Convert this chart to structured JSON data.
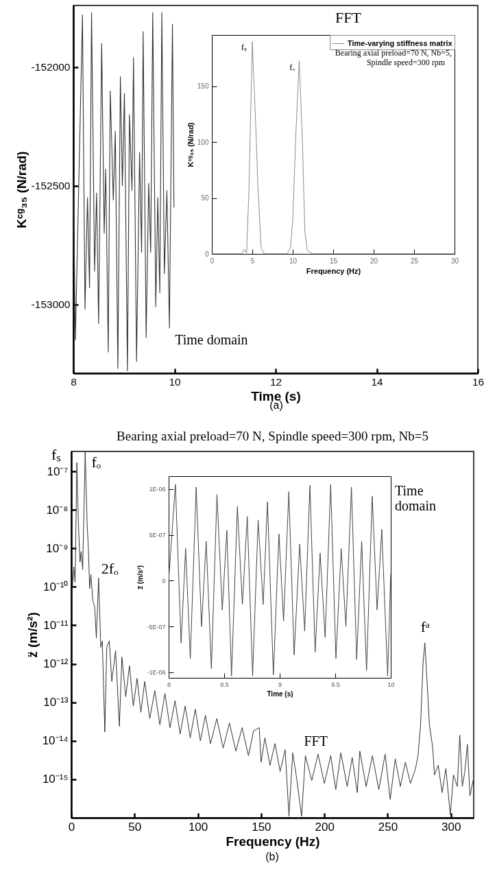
{
  "chart_data": [
    {
      "type": "line",
      "xlabel": "Time (s)",
      "ylabel": "Kᶜᵍ₃₅ (N/rad)",
      "xlim": [
        8,
        16
      ],
      "xticks": [
        8,
        10,
        12,
        14,
        16
      ],
      "ylim": [
        -153290,
        -151740
      ],
      "yticks": [
        -153000,
        -152500,
        -152000
      ],
      "series": [
        {
          "color": "#333333",
          "x": [
            8.0,
            8.04,
            8.18,
            8.23,
            8.28,
            8.32,
            8.36,
            8.42,
            8.46,
            8.5,
            8.56,
            8.61,
            8.64,
            8.69,
            8.73,
            8.79,
            8.83,
            8.88,
            8.93,
            8.97,
            9.01,
            9.07,
            9.11,
            9.16,
            9.19,
            9.25,
            9.31,
            9.35,
            9.38,
            9.44,
            9.49,
            9.53,
            9.57,
            9.63,
            9.67,
            9.71,
            9.75,
            9.8,
            9.85,
            9.9,
            9.96,
            9.99
          ],
          "values": [
            -152480,
            -153150,
            -151780,
            -153020,
            -152550,
            -152930,
            -151770,
            -152860,
            -152530,
            -153080,
            -151900,
            -152700,
            -152430,
            -153200,
            -152100,
            -152560,
            -152270,
            -153270,
            -152040,
            -152500,
            -152110,
            -153280,
            -152200,
            -152520,
            -151960,
            -153240,
            -152360,
            -152780,
            -151850,
            -153140,
            -152490,
            -152780,
            -151770,
            -153010,
            -152550,
            -152950,
            -151770,
            -152870,
            -152520,
            -153100,
            -151820,
            -152590
          ]
        }
      ],
      "annotations": [
        {
          "text": "Time domain",
          "x": 9.9,
          "y": -153100
        },
        "(a)"
      ]
    },
    {
      "type": "line",
      "xlabel": "Frequency (Hz)",
      "ylabel": "Kᶜᵍ₃₅ (N/rad)",
      "xlim": [
        0,
        30
      ],
      "xticks": [
        0,
        5,
        10,
        15,
        20,
        25,
        30
      ],
      "ylim": [
        0,
        196
      ],
      "yticks": [
        0,
        50,
        100,
        150
      ],
      "legend": "top right",
      "series": [
        {
          "name": "Time-varying stiffness matrix",
          "color": "#8c8c8c",
          "x": [
            0,
            3.7,
            4.0,
            4.3,
            4.6,
            5.0,
            5.4,
            5.7,
            6.1,
            6.5,
            9.3,
            9.7,
            10.0,
            10.4,
            10.8,
            11.2,
            11.5,
            11.8,
            12.5,
            30
          ],
          "values": [
            0,
            0,
            4,
            1,
            60,
            190,
            120,
            60,
            5,
            0,
            0,
            5,
            30,
            110,
            173,
            100,
            20,
            3,
            0,
            0
          ]
        }
      ],
      "annotations": [
        "FFT",
        {
          "text": "fₛ",
          "x": 5,
          "y": 190
        },
        {
          "text": "fₒ",
          "x": 10.8,
          "y": 173
        },
        "Bearing axial preload=70 N, Nb=5,",
        "Spindle speed=300 rpm"
      ]
    },
    {
      "type": "line",
      "title": "Bearing axial preload=70 N, Spindle speed=300 rpm, Nb=5",
      "xlabel": "Frequency (Hz)",
      "ylabel": "z̈ (m/s²)",
      "log": "y",
      "xlim": [
        0,
        318
      ],
      "xticks": [
        0,
        50,
        100,
        150,
        200,
        250,
        300
      ],
      "ylim": [
        1e-16,
        3.3e-07
      ],
      "yticks": [
        {
          "value": 1e-15,
          "label": "10⁻¹⁵"
        },
        {
          "value": 1e-14,
          "label": "10⁻¹⁴"
        },
        {
          "value": 1e-13,
          "label": "10⁻¹³"
        },
        {
          "value": 1e-12,
          "label": "10⁻¹²"
        },
        {
          "value": 1e-11,
          "label": "10⁻¹¹"
        },
        {
          "value": 1e-10,
          "label": "10⁻¹⁰"
        },
        {
          "value": 1e-09,
          "label": "10⁻⁹"
        },
        {
          "value": 1e-08,
          "label": "10⁻⁸"
        },
        {
          "value": 1e-07,
          "label": "10⁻⁷"
        }
      ],
      "series": [
        {
          "color": "#333333",
          "x": [
            0.5,
            2,
            3,
            4.4,
            5.6,
            6.9,
            7.8,
            9,
            11,
            12.5,
            13.5,
            14.5,
            15.5,
            17,
            18.5,
            19.8,
            21.6,
            23.3,
            24.5,
            26.5,
            28,
            30,
            32,
            35,
            38,
            40,
            43,
            46,
            49,
            52,
            55,
            58,
            62,
            66,
            70,
            74,
            78,
            82,
            86,
            90,
            94,
            98,
            102,
            106,
            110,
            115,
            120,
            125,
            130,
            135,
            140,
            144,
            148.5,
            150,
            153,
            157,
            161,
            165,
            169,
            172,
            175,
            178,
            182,
            185,
            190,
            195,
            200,
            205,
            209,
            213,
            218,
            222,
            226,
            228,
            233,
            238,
            243,
            248,
            252,
            256,
            260,
            264,
            268,
            272,
            274,
            276,
            278,
            279.4,
            281,
            283,
            285.5,
            287,
            290,
            293,
            296,
            299.5,
            302,
            305,
            307,
            309,
            311,
            313,
            315,
            317.5
          ],
          "values": [
            6.3e-11,
            3.3e-10,
            1.3e-10,
            1.7e-07,
            4.5e-09,
            4.4e-10,
            8.3e-10,
            2.8e-10,
            3.2e-07,
            4.5e-09,
            1e-09,
            9.1e-11,
            2.1e-10,
            4.4e-11,
            3e-11,
            4.7e-12,
            1.7e-10,
            2.7e-12,
            3.9e-12,
            1.7e-14,
            2.7e-12,
            3.9e-12,
            3.5e-13,
            2.2e-12,
            2.4e-14,
            1.5e-12,
            1.4e-13,
            8.9e-13,
            8e-14,
            4.2e-13,
            5.5e-14,
            3.5e-13,
            3.8e-14,
            2e-13,
            2.6e-14,
            1.7e-13,
            2.2e-14,
            1.1e-13,
            1.5e-14,
            8e-14,
            1.2e-14,
            6.6e-14,
            1e-14,
            4.6e-14,
            8.5e-15,
            3.8e-14,
            6.5e-15,
            2.9e-14,
            5.4e-15,
            2.2e-14,
            4.1e-15,
            1.8e-14,
            2.2e-14,
            2.8e-15,
            1.2e-14,
            2.3e-15,
            8.5e-15,
            1.6e-15,
            5.9e-15,
            1.1e-16,
            4.9e-15,
            1.1e-15,
            1.1e-16,
            4.1e-15,
            9.3e-16,
            4.5e-15,
            7.8e-16,
            4.1e-15,
            5.4e-16,
            4.9e-15,
            6.5e-16,
            3.7e-15,
            4.5e-16,
            5.4e-15,
            6.5e-16,
            4.1e-15,
            5.4e-16,
            4.5e-15,
            3e-16,
            3.4e-15,
            6.5e-16,
            2.8e-15,
            7.8e-16,
            1.9e-15,
            4.1e-15,
            2.6e-14,
            1.1e-12,
            3.5e-12,
            4.2e-13,
            2.6e-14,
            7.1e-15,
            1.3e-15,
            2.3e-15,
            4.5e-16,
            1.9e-15,
            1.2e-16,
            1.3e-15,
            6.5e-16,
            1.4e-14,
            6.5e-16,
            1.6e-15,
            8.1e-15,
            3.7e-16,
            9.3e-16
          ]
        }
      ],
      "annotations": [
        {
          "text": "fₛ",
          "x": 4.4,
          "y": 1.7e-07
        },
        {
          "text": "fₒ",
          "x": 11,
          "y": 3.2e-07
        },
        {
          "text": "2fₒ",
          "x": 21.6,
          "y": 1.7e-10
        },
        {
          "text": "fᵃ",
          "x": 279.4,
          "y": 3.5e-12
        },
        {
          "text": "FFT",
          "x": 172,
          "y": 4.9e-15
        },
        "(b)"
      ]
    },
    {
      "type": "line",
      "xlabel": "Time (s)",
      "ylabel": "z̈ (m/s²)",
      "xlim": [
        8,
        10
      ],
      "xticks": [
        8,
        8.5,
        9,
        9.5,
        10
      ],
      "ylim": [
        -1.06e-06,
        1.14e-06
      ],
      "yticks": [
        {
          "value": -1e-06,
          "label": "-1E-06"
        },
        {
          "value": -5e-07,
          "label": "-5E-07"
        },
        0,
        {
          "value": 5e-07,
          "label": "5E-07"
        },
        {
          "value": 1e-06,
          "label": "1E-06"
        }
      ],
      "series": [
        {
          "color": "#444444",
          "x": [
            8.0,
            8.061,
            8.112,
            8.153,
            8.195,
            8.248,
            8.296,
            8.338,
            8.385,
            8.435,
            8.483,
            8.524,
            8.566,
            8.619,
            8.664,
            8.708,
            8.756,
            8.806,
            8.851,
            8.89,
            8.943,
            8.993,
            9.035,
            9.082,
            9.13,
            9.18,
            9.225,
            9.272,
            9.319,
            9.364,
            9.409,
            9.459,
            9.506,
            9.554,
            9.596,
            9.646,
            9.693,
            9.738,
            9.782,
            9.833,
            9.877,
            9.919,
            9.972,
            10.0
          ],
          "values": [
            0,
            1.05e-06,
            -6.8e-07,
            3.5e-07,
            -8.5e-07,
            1.02e-06,
            -5e-07,
            4.3e-07,
            -9.6e-07,
            9.4e-07,
            -3.2e-07,
            5.5e-07,
            -1.04e-06,
            8.1e-07,
            -2.6e-07,
            7e-07,
            -1.04e-06,
            6.6e-07,
            -2.6e-07,
            8.6e-07,
            -1.03e-06,
            5.1e-07,
            -4.4e-07,
            9.7e-07,
            -8.1e-07,
            4e-07,
            -5.5e-07,
            1.04e-06,
            -7.8e-07,
            3e-07,
            -6.2e-07,
            1.05e-06,
            -8.5e-07,
            3.5e-07,
            -5e-07,
            1.02e-06,
            -8.6e-07,
            4.3e-07,
            -9.8e-07,
            9.2e-07,
            -3.2e-07,
            5.6e-07,
            -1.04e-06,
            7e-08
          ]
        }
      ],
      "annotations": [
        "Time domain"
      ]
    }
  ]
}
